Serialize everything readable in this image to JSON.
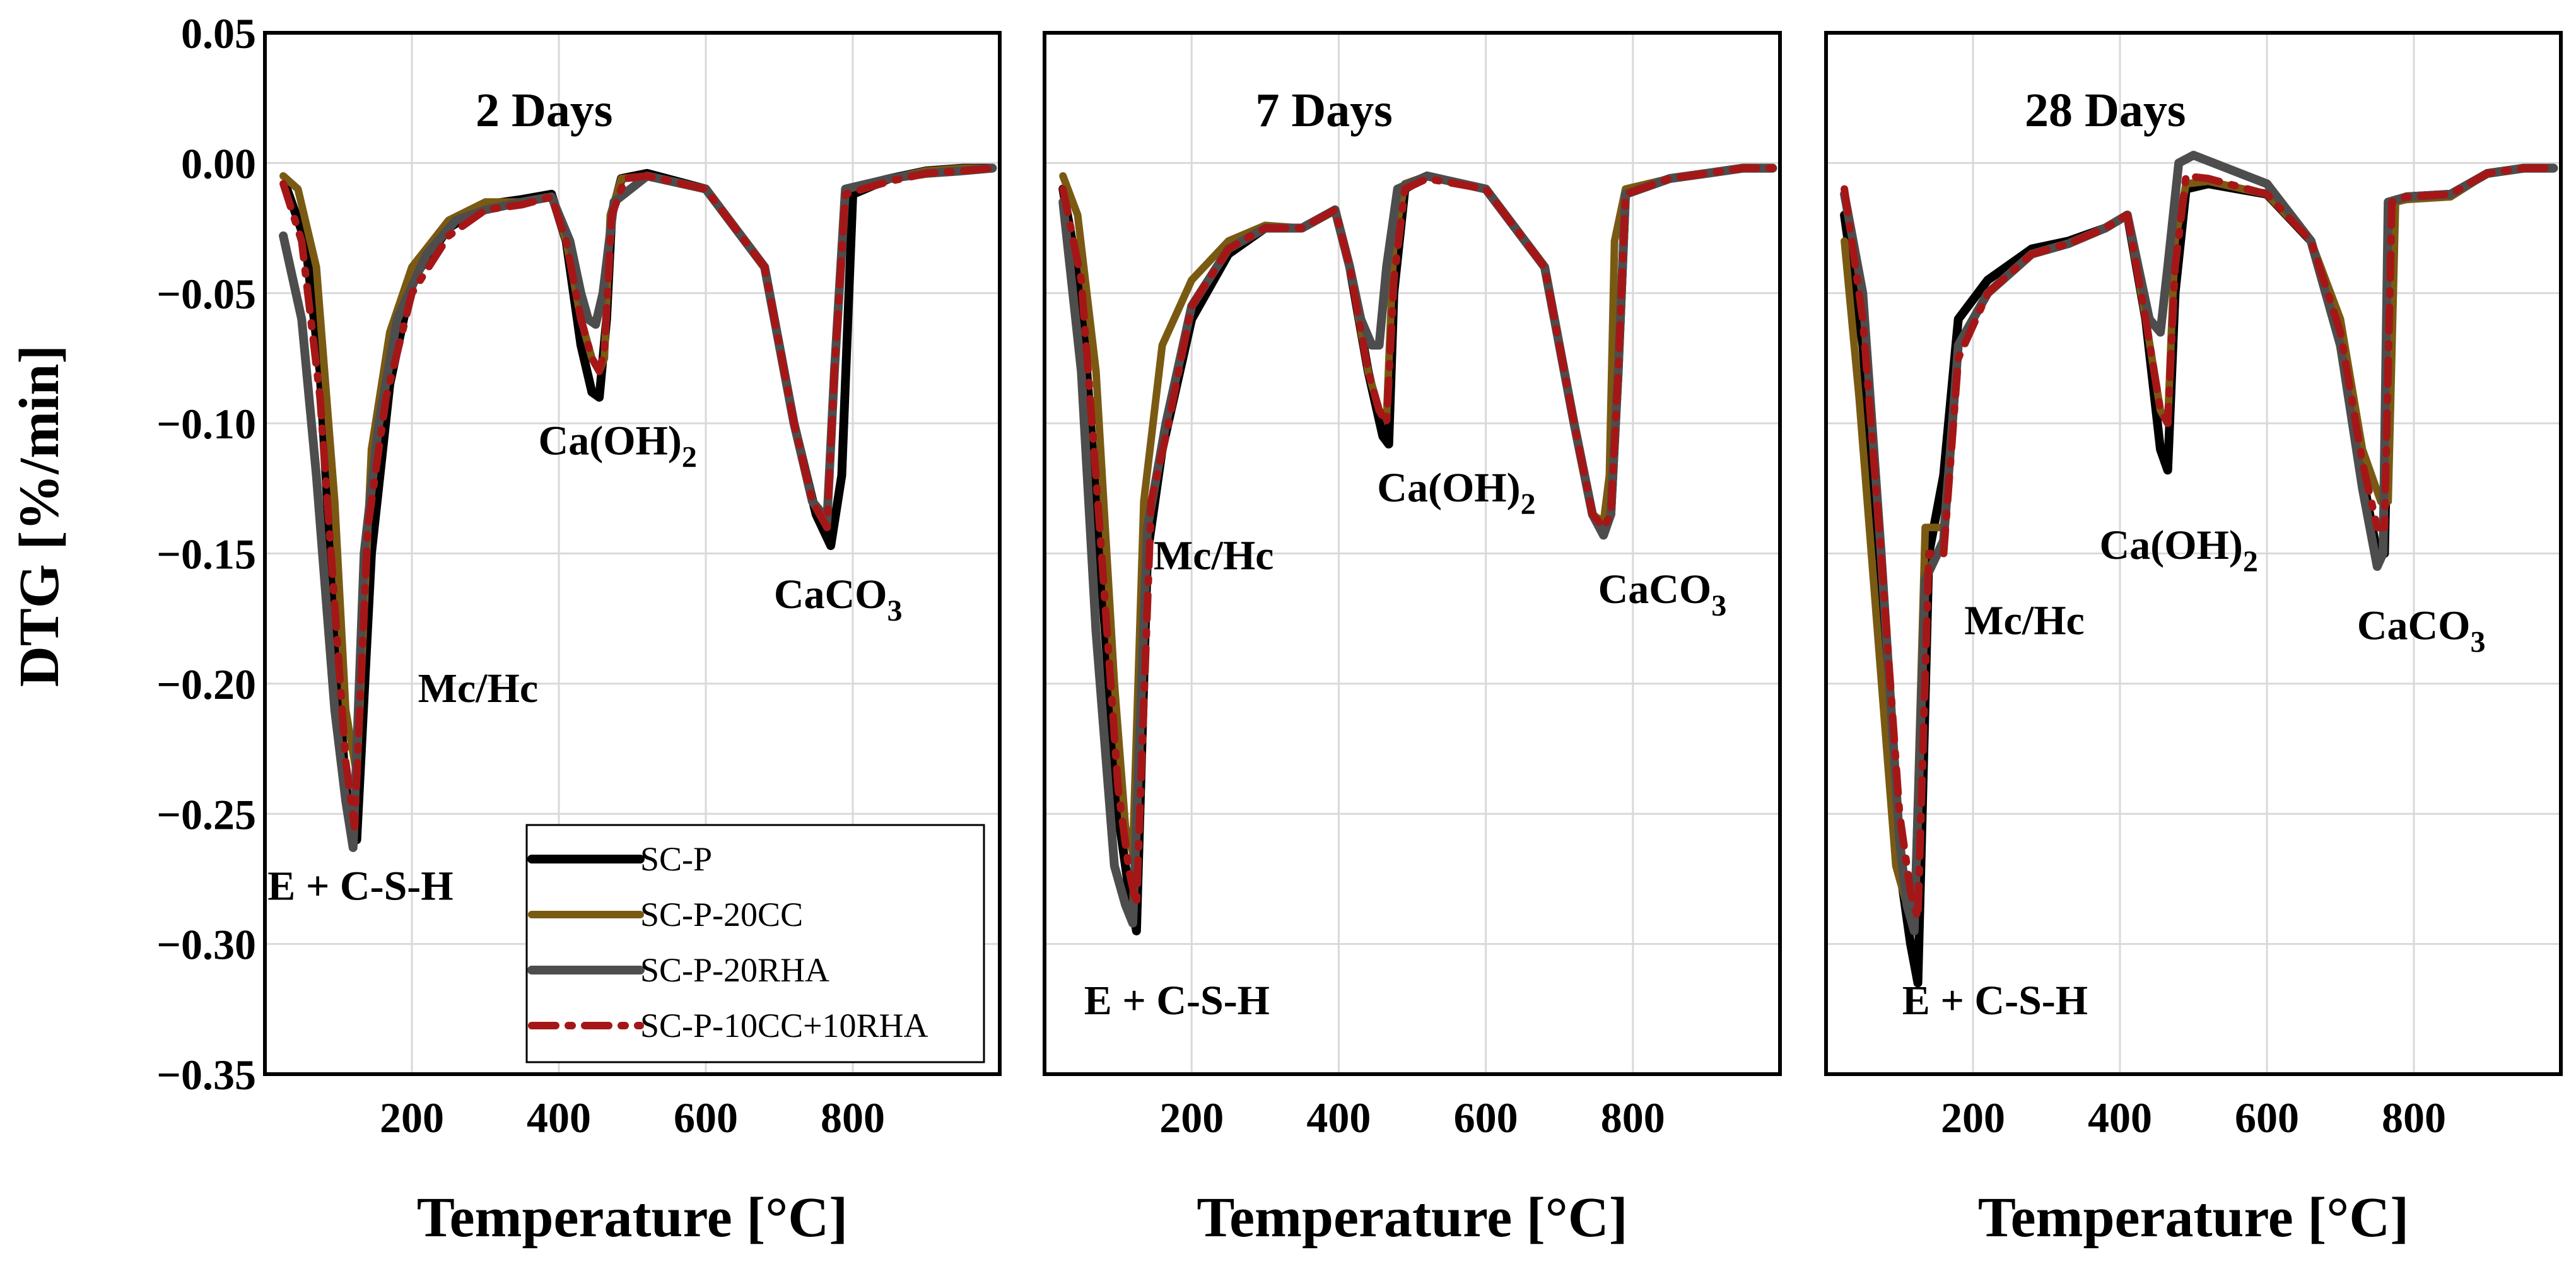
{
  "chart_data": {
    "type": "line",
    "ylabel": "DTG [%/min]",
    "xlabel": "Temperature [°C]",
    "xlim": [
      0,
      1000
    ],
    "ylim": [
      -0.35,
      0.05
    ],
    "yticks": [
      0.05,
      0.0,
      -0.05,
      -0.1,
      -0.15,
      -0.2,
      -0.25,
      -0.3,
      -0.35
    ],
    "ytick_labels": [
      "0.05",
      "0.00",
      "−0.05",
      "−0.10",
      "−0.15",
      "−0.20",
      "−0.25",
      "−0.30",
      "−0.35"
    ],
    "xticks": [
      200,
      400,
      600,
      800
    ],
    "xtick_labels": [
      "200",
      "400",
      "600",
      "800"
    ],
    "grid": true,
    "legend_position": "bottom-right of first panel",
    "legend": [
      {
        "name": "SC-P",
        "color": "#000000",
        "dash": "solid"
      },
      {
        "name": "SC-P-20CC",
        "color": "#7a5a12",
        "dash": "solid"
      },
      {
        "name": "SC-P-20RHA",
        "color": "#4d4d4d",
        "dash": "solid"
      },
      {
        "name": "SC-P-10CC+10RHA",
        "color": "#a51717",
        "dash": "dashdot"
      }
    ],
    "panels": [
      {
        "title": "2 Days",
        "annotations": [
          {
            "text": "E + C-S-H",
            "x": 130,
            "y": -0.283
          },
          {
            "text": "Mc/Hc",
            "x": 290,
            "y": -0.207
          },
          {
            "text": "Ca(OH)",
            "sub": "2",
            "x": 480,
            "y": -0.112
          },
          {
            "text": "CaCO",
            "sub": "3",
            "x": 780,
            "y": -0.171
          }
        ],
        "series": [
          {
            "name": "SC-P",
            "x": [
              30,
              55,
              75,
              95,
              110,
              125,
              145,
              170,
              200,
              250,
              300,
              350,
              390,
              410,
              430,
              445,
              455,
              465,
              472,
              485,
              520,
              600,
              680,
              720,
              750,
              770,
              785,
              800,
              850,
              900,
              950,
              990
            ],
            "y": [
              -0.01,
              -0.03,
              -0.08,
              -0.18,
              -0.24,
              -0.26,
              -0.15,
              -0.085,
              -0.045,
              -0.025,
              -0.016,
              -0.014,
              -0.012,
              -0.03,
              -0.07,
              -0.088,
              -0.09,
              -0.06,
              -0.02,
              -0.006,
              -0.004,
              -0.01,
              -0.04,
              -0.1,
              -0.135,
              -0.147,
              -0.12,
              -0.012,
              -0.006,
              -0.003,
              -0.002,
              -0.002
            ]
          },
          {
            "name": "SC-P-20CC",
            "x": [
              25,
              45,
              70,
              95,
              110,
              125,
              145,
              170,
              200,
              250,
              300,
              350,
              390,
              410,
              430,
              445,
              455,
              462,
              470,
              485,
              520,
              600,
              680,
              720,
              745,
              765,
              775,
              790,
              850,
              900,
              950,
              990
            ],
            "y": [
              -0.005,
              -0.01,
              -0.04,
              -0.13,
              -0.21,
              -0.235,
              -0.11,
              -0.065,
              -0.04,
              -0.022,
              -0.015,
              -0.015,
              -0.013,
              -0.03,
              -0.06,
              -0.075,
              -0.08,
              -0.075,
              -0.02,
              -0.006,
              -0.005,
              -0.01,
              -0.04,
              -0.1,
              -0.13,
              -0.14,
              -0.08,
              -0.01,
              -0.006,
              -0.003,
              -0.002,
              -0.002
            ]
          },
          {
            "name": "SC-P-20RHA",
            "x": [
              25,
              50,
              70,
              95,
              110,
              120,
              135,
              155,
              180,
              220,
              260,
              300,
              350,
              390,
              415,
              430,
              440,
              450,
              460,
              475,
              520,
              600,
              680,
              720,
              745,
              765,
              775,
              790,
              850,
              900,
              950,
              990
            ],
            "y": [
              -0.028,
              -0.06,
              -0.12,
              -0.21,
              -0.245,
              -0.263,
              -0.15,
              -0.1,
              -0.06,
              -0.035,
              -0.022,
              -0.018,
              -0.015,
              -0.013,
              -0.03,
              -0.05,
              -0.06,
              -0.062,
              -0.05,
              -0.015,
              -0.005,
              -0.01,
              -0.04,
              -0.1,
              -0.13,
              -0.137,
              -0.08,
              -0.01,
              -0.006,
              -0.004,
              -0.003,
              -0.002
            ]
          },
          {
            "name": "SC-P-10CC+10RHA",
            "x": [
              25,
              50,
              75,
              95,
              110,
              122,
              140,
              165,
              200,
              250,
              300,
              350,
              390,
              410,
              430,
              445,
              455,
              462,
              472,
              490,
              520,
              600,
              680,
              720,
              745,
              765,
              775,
              790,
              850,
              900,
              950,
              990
            ],
            "y": [
              -0.008,
              -0.03,
              -0.09,
              -0.17,
              -0.23,
              -0.255,
              -0.14,
              -0.09,
              -0.05,
              -0.028,
              -0.018,
              -0.016,
              -0.013,
              -0.03,
              -0.06,
              -0.075,
              -0.08,
              -0.072,
              -0.02,
              -0.006,
              -0.005,
              -0.01,
              -0.04,
              -0.1,
              -0.13,
              -0.14,
              -0.08,
              -0.012,
              -0.007,
              -0.004,
              -0.003,
              -0.002
            ]
          }
        ]
      },
      {
        "title": "7 Days",
        "annotations": [
          {
            "text": "E + C-S-H",
            "x": 180,
            "y": -0.327
          },
          {
            "text": "Mc/Hc",
            "x": 230,
            "y": -0.156
          },
          {
            "text": "Ca(OH)",
            "sub": "2",
            "x": 560,
            "y": -0.13
          },
          {
            "text": "CaCO",
            "sub": "3",
            "x": 840,
            "y": -0.169
          }
        ],
        "series": [
          {
            "name": "SC-P",
            "x": [
              25,
              50,
              75,
              100,
              115,
              125,
              140,
              160,
              200,
              250,
              300,
              350,
              395,
              415,
              440,
              460,
              468,
              475,
              490,
              520,
              600,
              680,
              720,
              745,
              760,
              770,
              780,
              790,
              850,
              900,
              950,
              990
            ],
            "y": [
              -0.01,
              -0.05,
              -0.15,
              -0.25,
              -0.28,
              -0.295,
              -0.15,
              -0.11,
              -0.06,
              -0.035,
              -0.025,
              -0.025,
              -0.018,
              -0.04,
              -0.08,
              -0.105,
              -0.108,
              -0.05,
              -0.01,
              -0.005,
              -0.01,
              -0.04,
              -0.1,
              -0.135,
              -0.14,
              -0.135,
              -0.08,
              -0.012,
              -0.006,
              -0.004,
              -0.002,
              -0.002
            ]
          },
          {
            "name": "SC-P-20CC",
            "x": [
              25,
              45,
              70,
              95,
              110,
              120,
              135,
              160,
              200,
              250,
              300,
              350,
              395,
              415,
              440,
              455,
              465,
              475,
              490,
              520,
              600,
              680,
              720,
              745,
              760,
              768,
              775,
              790,
              850,
              900,
              950,
              990
            ],
            "y": [
              -0.005,
              -0.02,
              -0.08,
              -0.2,
              -0.255,
              -0.265,
              -0.13,
              -0.07,
              -0.045,
              -0.03,
              -0.024,
              -0.025,
              -0.018,
              -0.04,
              -0.08,
              -0.095,
              -0.098,
              -0.03,
              -0.008,
              -0.005,
              -0.01,
              -0.04,
              -0.1,
              -0.135,
              -0.138,
              -0.12,
              -0.03,
              -0.01,
              -0.006,
              -0.004,
              -0.002,
              -0.002
            ]
          },
          {
            "name": "SC-P-20RHA",
            "x": [
              25,
              50,
              70,
              95,
              110,
              120,
              140,
              165,
              200,
              250,
              300,
              350,
              395,
              415,
              430,
              445,
              455,
              465,
              480,
              520,
              600,
              680,
              720,
              745,
              760,
              770,
              780,
              790,
              850,
              900,
              950,
              990
            ],
            "y": [
              -0.015,
              -0.08,
              -0.18,
              -0.27,
              -0.285,
              -0.292,
              -0.14,
              -0.1,
              -0.055,
              -0.033,
              -0.025,
              -0.025,
              -0.018,
              -0.04,
              -0.06,
              -0.07,
              -0.07,
              -0.04,
              -0.01,
              -0.005,
              -0.01,
              -0.04,
              -0.1,
              -0.135,
              -0.143,
              -0.135,
              -0.08,
              -0.012,
              -0.006,
              -0.004,
              -0.002,
              -0.002
            ]
          },
          {
            "name": "SC-P-10CC+10RHA",
            "x": [
              25,
              50,
              75,
              100,
              115,
              125,
              145,
              165,
              200,
              250,
              300,
              350,
              395,
              415,
              440,
              455,
              465,
              475,
              490,
              520,
              600,
              680,
              720,
              745,
              760,
              770,
              780,
              790,
              850,
              900,
              950,
              990
            ],
            "y": [
              -0.01,
              -0.045,
              -0.14,
              -0.24,
              -0.272,
              -0.285,
              -0.13,
              -0.105,
              -0.055,
              -0.033,
              -0.025,
              -0.025,
              -0.018,
              -0.04,
              -0.08,
              -0.095,
              -0.1,
              -0.045,
              -0.01,
              -0.006,
              -0.01,
              -0.04,
              -0.1,
              -0.135,
              -0.14,
              -0.135,
              -0.08,
              -0.012,
              -0.006,
              -0.004,
              -0.002,
              -0.002
            ]
          }
        ]
      },
      {
        "title": "28 Days",
        "annotations": [
          {
            "text": "E + C-S-H",
            "x": 230,
            "y": -0.327
          },
          {
            "text": "Mc/Hc",
            "x": 270,
            "y": -0.181
          },
          {
            "text": "Ca(OH)",
            "sub": "2",
            "x": 480,
            "y": -0.152
          },
          {
            "text": "CaCO",
            "sub": "3",
            "x": 810,
            "y": -0.183
          }
        ],
        "series": [
          {
            "name": "SC-P",
            "x": [
              25,
              50,
              75,
              100,
              115,
              125,
              140,
              160,
              180,
              220,
              280,
              330,
              380,
              410,
              435,
              455,
              465,
              475,
              490,
              520,
              600,
              660,
              700,
              730,
              750,
              760,
              770,
              790,
              850,
              900,
              950,
              990
            ],
            "y": [
              -0.02,
              -0.07,
              -0.16,
              -0.27,
              -0.3,
              -0.315,
              -0.15,
              -0.12,
              -0.06,
              -0.045,
              -0.033,
              -0.03,
              -0.025,
              -0.02,
              -0.06,
              -0.11,
              -0.118,
              -0.05,
              -0.01,
              -0.008,
              -0.012,
              -0.03,
              -0.07,
              -0.12,
              -0.15,
              -0.15,
              -0.015,
              -0.013,
              -0.012,
              -0.004,
              -0.002,
              -0.002
            ]
          },
          {
            "name": "SC-P-20CC",
            "x": [
              25,
              45,
              70,
              95,
              110,
              120,
              135,
              160,
              180,
              220,
              280,
              330,
              380,
              410,
              435,
              455,
              465,
              475,
              490,
              520,
              600,
              660,
              700,
              730,
              755,
              765,
              775,
              790,
              850,
              900,
              950,
              990
            ],
            "y": [
              -0.03,
              -0.09,
              -0.18,
              -0.27,
              -0.285,
              -0.29,
              -0.14,
              -0.14,
              -0.07,
              -0.05,
              -0.035,
              -0.031,
              -0.025,
              -0.02,
              -0.06,
              -0.095,
              -0.1,
              -0.03,
              -0.008,
              -0.007,
              -0.012,
              -0.03,
              -0.06,
              -0.11,
              -0.13,
              -0.13,
              -0.015,
              -0.014,
              -0.013,
              -0.004,
              -0.002,
              -0.002
            ]
          },
          {
            "name": "SC-P-20RHA",
            "x": [
              25,
              50,
              75,
              100,
              110,
              120,
              135,
              160,
              180,
              220,
              280,
              330,
              380,
              410,
              425,
              440,
              455,
              465,
              480,
              500,
              600,
              660,
              700,
              730,
              750,
              758,
              765,
              790,
              850,
              900,
              950,
              990
            ],
            "y": [
              -0.012,
              -0.05,
              -0.15,
              -0.26,
              -0.285,
              -0.295,
              -0.16,
              -0.145,
              -0.07,
              -0.05,
              -0.035,
              -0.031,
              -0.025,
              -0.02,
              -0.04,
              -0.06,
              -0.065,
              -0.04,
              0.0,
              0.003,
              -0.008,
              -0.03,
              -0.07,
              -0.125,
              -0.155,
              -0.15,
              -0.015,
              -0.013,
              -0.012,
              -0.004,
              -0.002,
              -0.002
            ]
          },
          {
            "name": "SC-P-10CC+10RHA",
            "x": [
              25,
              50,
              75,
              100,
              115,
              125,
              140,
              160,
              180,
              220,
              280,
              330,
              380,
              410,
              435,
              455,
              465,
              475,
              490,
              520,
              600,
              660,
              700,
              730,
              750,
              760,
              770,
              790,
              850,
              900,
              950,
              990
            ],
            "y": [
              -0.01,
              -0.06,
              -0.15,
              -0.25,
              -0.28,
              -0.29,
              -0.15,
              -0.15,
              -0.075,
              -0.05,
              -0.035,
              -0.031,
              -0.025,
              -0.02,
              -0.06,
              -0.095,
              -0.1,
              -0.04,
              -0.005,
              -0.006,
              -0.012,
              -0.03,
              -0.065,
              -0.115,
              -0.14,
              -0.14,
              -0.015,
              -0.013,
              -0.012,
              -0.004,
              -0.002,
              -0.002
            ]
          }
        ]
      }
    ]
  }
}
